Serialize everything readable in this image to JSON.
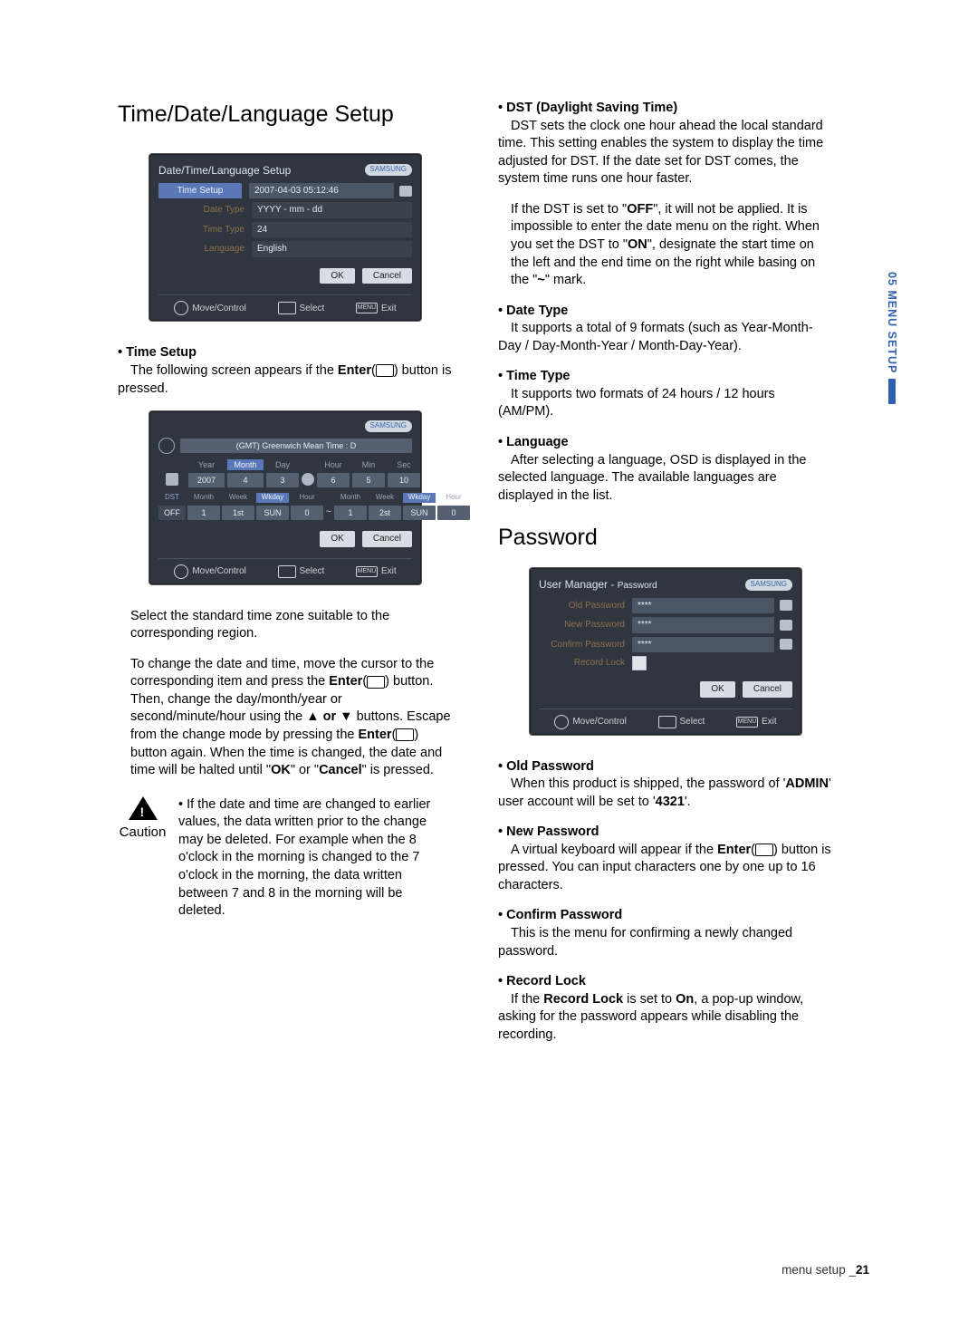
{
  "sidetab": "05 MENU SETUP",
  "footer": {
    "label": "menu setup _",
    "page": "21"
  },
  "left": {
    "h1": "Time/Date/Language Setup",
    "scrn1": {
      "title": "Date/Time/Language Setup",
      "brand": "SAMSUNG",
      "rows": {
        "time_setup_lbl": "Time Setup",
        "time_setup_val": "2007-04-03    05:12:46",
        "date_type_lbl": "Date Type",
        "date_type_val": "YYYY - mm - dd",
        "time_type_lbl": "Time Type",
        "time_type_val": "24",
        "language_lbl": "Language",
        "language_val": "English"
      },
      "ok": "OK",
      "cancel": "Cancel",
      "foot": {
        "move": "Move/Control",
        "select": "Select",
        "menu": "MENU",
        "exit": "Exit"
      }
    },
    "ts_head": "Time Setup",
    "ts_body_a": "The following screen appears if the ",
    "ts_body_enter": "Enter",
    "ts_body_b": "(",
    "ts_body_c": ") button is pressed.",
    "scrn2": {
      "brand": "SAMSUNG",
      "tz": "(GMT) Greenwich Mean Time : D",
      "heads": {
        "year": "Year",
        "month": "Month",
        "day": "Day",
        "hour": "Hour",
        "min": "Min",
        "sec": "Sec"
      },
      "vals": {
        "year": "2007",
        "month": "4",
        "day": "3",
        "hour": "6",
        "min": "5",
        "sec": "10"
      },
      "dst_lbl": "DST",
      "dst_heads": {
        "m1": "Month",
        "w1": "Week",
        "wd1": "Wkday",
        "h1": "Hour",
        "m2": "Month",
        "w2": "Week",
        "wd2": "Wkday",
        "h2": "Hour"
      },
      "dst_vals": {
        "off": "OFF",
        "m1": "1",
        "w1": "1st",
        "wd1": "SUN",
        "h1": "0",
        "tilde": "~",
        "m2": "1",
        "w2": "2st",
        "wd2": "SUN",
        "h2": "0"
      },
      "ok": "OK",
      "cancel": "Cancel",
      "foot": {
        "move": "Move/Control",
        "select": "Select",
        "menu": "MENU",
        "exit": "Exit"
      }
    },
    "para1": "Select the standard time zone suitable to the corresponding region.",
    "para2a": "To change the date and time, move the cursor to the corresponding item and press the ",
    "para2_enter": "Enter",
    "para2b": "(",
    "para2c": ") button. Then, change the day/month/year or second/minute/hour using the ▲ ",
    "para2_or": "or",
    "para2d": " ▼ buttons. Escape from the change mode by pressing the ",
    "para2_enter2": "Enter",
    "para2e": "(",
    "para2f": ") button again. When the time is changed, the date and time will be halted until \"",
    "para2_ok": "OK",
    "para2g": "\" or \"",
    "para2_cancel": "Cancel",
    "para2h": "\" is pressed.",
    "caution_label": "Caution",
    "caution_text": "If the date and time are changed to earlier values, the data written prior to the change may be deleted. For example when the 8 o'clock in the morning is changed to the 7 o'clock in the morning, the data written between 7 and 8 in the morning will be deleted."
  },
  "right": {
    "dst_head": "DST (Daylight Saving Time)",
    "dst_p1": "DST sets the clock one hour ahead the local standard time.  This setting enables the system to display the time adjusted for DST. If the date set for DST comes, the system time runs one hour faster.",
    "dst_p2a": "If the DST is set to \"",
    "dst_off": "OFF",
    "dst_p2b": "\", it will not be applied. It is impossible to enter the date menu on the right. When you set the DST to \"",
    "dst_on": "ON",
    "dst_p2c": "\", designate the start time on the left and the end time on the right while basing on the \"",
    "dst_tilde": "~",
    "dst_p2d": "\" mark.",
    "dt_head": "Date Type",
    "dt_body": "It supports a total of 9 formats (such as Year-Month-Day / Day-Month-Year / Month-Day-Year).",
    "tt_head": "Time Type",
    "tt_body": "It supports two formats of 24 hours / 12 hours (AM/PM).",
    "lang_head": "Language",
    "lang_body": "After selecting a language, OSD is displayed in the selected language. The available languages are displayed in the list.",
    "pw_h": "Password",
    "scrn3": {
      "title": "User Manager - ",
      "title_sub": "Password",
      "brand": "SAMSUNG",
      "rows": {
        "old_lbl": "Old Password",
        "old_val": "****",
        "new_lbl": "New Password",
        "new_val": "****",
        "cf_lbl": "Confirm Password",
        "cf_val": "****",
        "rl_lbl": "Record Lock"
      },
      "ok": "OK",
      "cancel": "Cancel",
      "foot": {
        "move": "Move/Control",
        "select": "Select",
        "menu": "MENU",
        "exit": "Exit"
      }
    },
    "op_head": "Old Password",
    "op_a": "When this product is shipped, the password of '",
    "op_admin": "ADMIN",
    "op_b": "' user account will be set to '",
    "op_4321": "4321",
    "op_c": "'.",
    "np_head": "New Password",
    "np_a": "A virtual keyboard will appear if the ",
    "np_enter": "Enter",
    "np_b": "(",
    "np_c": ") button is pressed. You can input characters one by one up to 16 characters.",
    "cp_head": "Confirm Password",
    "cp_body": "This is the menu for confirming a newly changed password.",
    "rl_head": "Record Lock",
    "rl_a": "If the ",
    "rl_rl": "Record Lock",
    "rl_b": " is set to ",
    "rl_on": "On",
    "rl_c": ", a pop-up window, asking for the password appears while disabling the recording."
  }
}
